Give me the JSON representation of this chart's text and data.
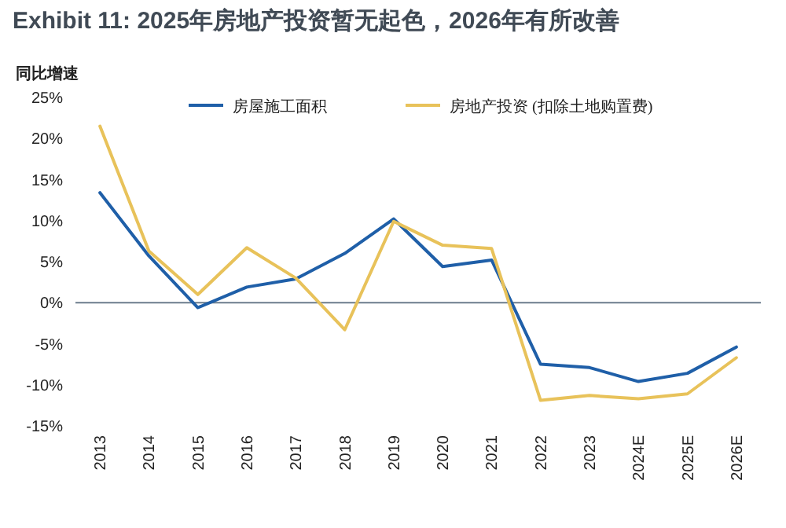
{
  "chart_data": {
    "type": "line",
    "title": "Exhibit 11:  2025年房地产投资暂无起色，2026年有所改善",
    "ylabel": "同比增速",
    "categories": [
      "2013",
      "2014",
      "2015",
      "2016",
      "2017",
      "2018",
      "2019",
      "2020",
      "2021",
      "2022",
      "2023",
      "2024E",
      "2025E",
      "2026E"
    ],
    "series": [
      {
        "name": "房屋施工面积",
        "color": "#1f5fa8",
        "values": [
          13.4,
          5.7,
          -0.6,
          1.9,
          2.9,
          6.0,
          10.2,
          4.4,
          5.2,
          -7.5,
          -7.9,
          -9.6,
          -8.6,
          -5.4
        ]
      },
      {
        "name": "房地产投资 (扣除土地购置费)",
        "color": "#e8c25a",
        "values": [
          21.5,
          6.3,
          1.0,
          6.7,
          3.0,
          -3.3,
          9.9,
          7.0,
          6.6,
          -11.9,
          -11.3,
          -11.7,
          -11.1,
          -6.7
        ]
      }
    ],
    "ylim": [
      -15,
      25
    ],
    "yticks": [
      {
        "value": -15,
        "label": "-15%"
      },
      {
        "value": -10,
        "label": "-10%"
      },
      {
        "value": -5,
        "label": "-5%"
      },
      {
        "value": 0,
        "label": "0%"
      },
      {
        "value": 5,
        "label": "5%"
      },
      {
        "value": 10,
        "label": "10%"
      },
      {
        "value": 15,
        "label": "15%"
      },
      {
        "value": 20,
        "label": "20%"
      },
      {
        "value": 25,
        "label": "25%"
      }
    ],
    "ref_lines": [
      {
        "axis": "y",
        "value": 0,
        "color": "#6b7c8c"
      }
    ],
    "legend": "top",
    "grid": false,
    "marker": "none",
    "line_style": "solid"
  }
}
